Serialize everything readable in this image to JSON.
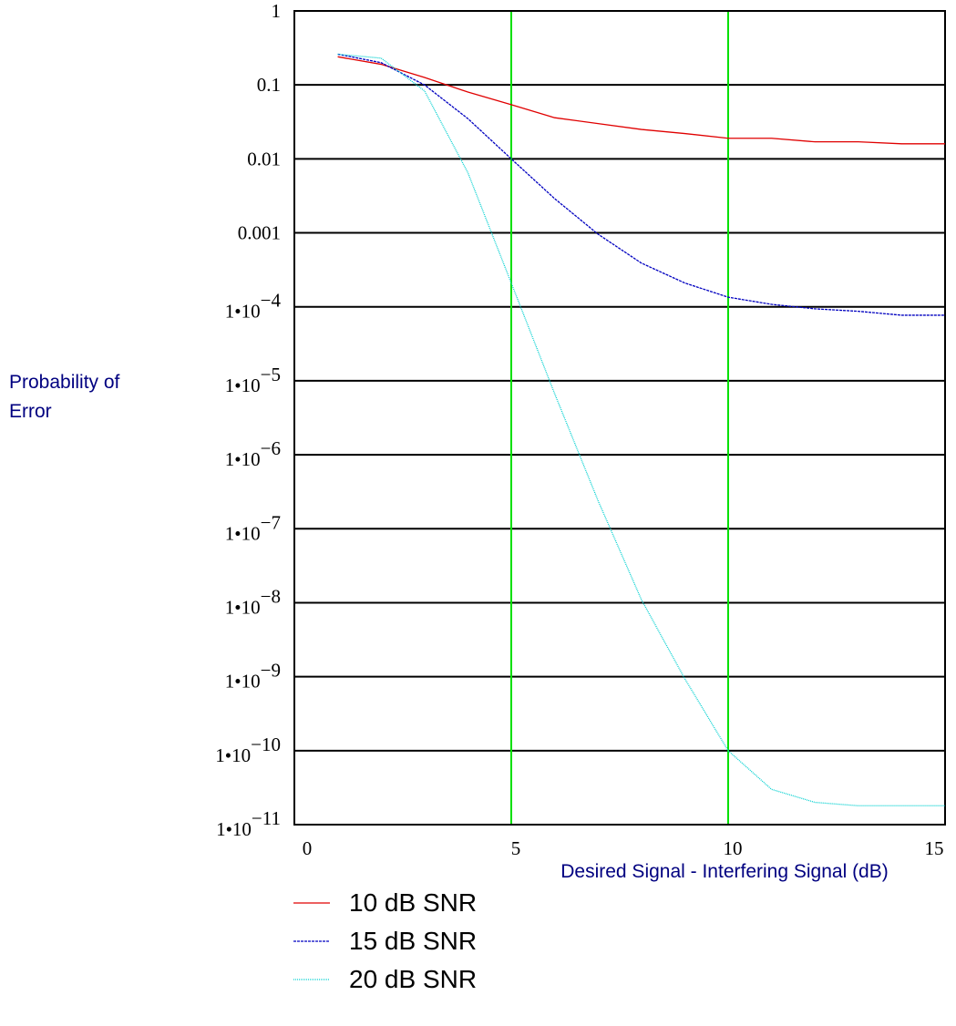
{
  "chart_data": {
    "type": "line",
    "x_label": "Desired Signal - Interfering Signal (dB)",
    "y_label": "Probability of Error",
    "log_y": true,
    "x": [
      1,
      2,
      3,
      4,
      5,
      6,
      7,
      8,
      9,
      10,
      11,
      12,
      13,
      14,
      15
    ],
    "series": [
      {
        "name": "10 dB SNR",
        "color": "#e00000",
        "dash": "none",
        "values": [
          0.24,
          0.19,
          0.126,
          0.08,
          0.054,
          0.036,
          0.03,
          0.025,
          0.022,
          0.019,
          0.019,
          0.017,
          0.017,
          0.016,
          0.016
        ]
      },
      {
        "name": "15 dB SNR",
        "color": "#0000c0",
        "dash": "3,1",
        "values": [
          0.26,
          0.2,
          0.1,
          0.035,
          0.01,
          0.0029,
          0.00096,
          0.00039,
          0.00021,
          0.000135,
          0.000108,
          9.4e-05,
          8.7e-05,
          7.7e-05,
          7.7e-05
        ]
      },
      {
        "name": "20 dB SNR",
        "color": "#00d0d0",
        "dash": "1,1",
        "values": [
          0.26,
          0.23,
          0.083,
          0.0065,
          0.00021,
          6.7e-06,
          2.4e-07,
          1.1e-08,
          9.4e-10,
          1e-10,
          3e-11,
          2e-11,
          1.8e-11,
          1.8e-11,
          1.8e-11
        ]
      }
    ],
    "xlim": [
      0,
      15
    ],
    "xticks": [
      0,
      5,
      10,
      15
    ],
    "x_grid_color": "#00e000",
    "ylim": [
      1e-11,
      1
    ],
    "yticks": [
      {
        "value": 1e-11,
        "label": "1•10−11"
      },
      {
        "value": 1e-10,
        "label": "1•10−10"
      },
      {
        "value": 1e-09,
        "label": "1•10−9"
      },
      {
        "value": 1e-08,
        "label": "1•10−8"
      },
      {
        "value": 1e-07,
        "label": "1•10−7"
      },
      {
        "value": 1e-06,
        "label": "1•10−6"
      },
      {
        "value": 1e-05,
        "label": "1•10−5"
      },
      {
        "value": 0.0001,
        "label": "1•10−4"
      },
      0.001,
      0.01,
      0.1,
      1
    ],
    "y_grid_color": "#000000"
  }
}
